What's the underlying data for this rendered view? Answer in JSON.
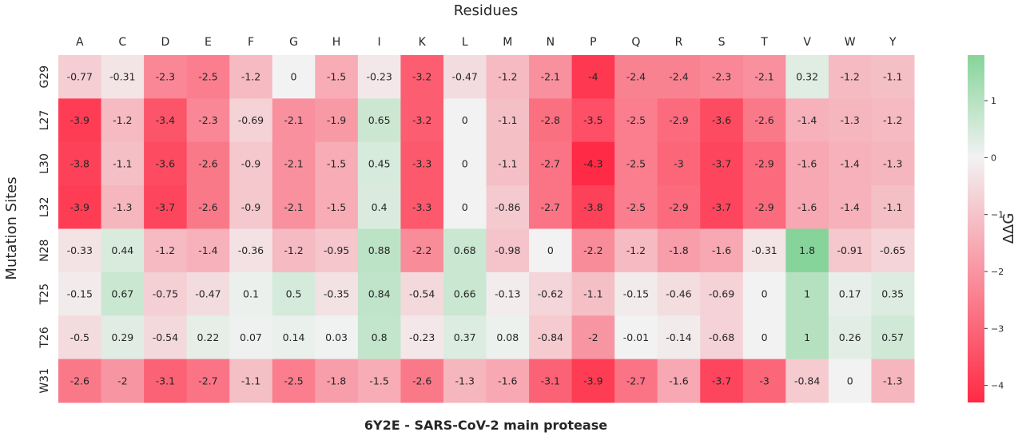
{
  "chart_data": {
    "type": "heatmap",
    "title": "Residues",
    "xlabel": "6Y2E - SARS-CoV-2 main protease",
    "ylabel": "Mutation Sites",
    "columns": [
      "A",
      "C",
      "D",
      "E",
      "F",
      "G",
      "H",
      "I",
      "K",
      "L",
      "M",
      "N",
      "P",
      "Q",
      "R",
      "S",
      "T",
      "V",
      "W",
      "Y"
    ],
    "rows": [
      "G29",
      "L27",
      "L30",
      "L32",
      "N28",
      "T25",
      "T26",
      "W31"
    ],
    "values": [
      [
        -0.77,
        -0.31,
        -2.3,
        -2.5,
        -1.2,
        0,
        -1.5,
        -0.23,
        -3.2,
        -0.47,
        -1.2,
        -2.1,
        -4,
        -2.4,
        -2.4,
        -2.3,
        -2.1,
        0.32,
        -1.2,
        -1.1
      ],
      [
        -3.9,
        -1.2,
        -3.4,
        -2.3,
        -0.69,
        -2.1,
        -1.9,
        0.65,
        -3.2,
        0,
        -1.1,
        -2.8,
        -3.5,
        -2.5,
        -2.9,
        -3.6,
        -2.6,
        -1.4,
        -1.3,
        -1.2
      ],
      [
        -3.8,
        -1.1,
        -3.6,
        -2.6,
        -0.9,
        -2.1,
        -1.5,
        0.45,
        -3.3,
        0,
        -1.1,
        -2.7,
        -4.3,
        -2.5,
        -3,
        -3.7,
        -2.9,
        -1.6,
        -1.4,
        -1.3
      ],
      [
        -3.9,
        -1.3,
        -3.7,
        -2.6,
        -0.9,
        -2.1,
        -1.5,
        0.4,
        -3.3,
        0,
        -0.86,
        -2.7,
        -3.8,
        -2.5,
        -2.9,
        -3.7,
        -2.9,
        -1.6,
        -1.4,
        -1.1
      ],
      [
        -0.33,
        0.44,
        -1.2,
        -1.4,
        -0.36,
        -1.2,
        -0.95,
        0.88,
        -2.2,
        0.68,
        -0.98,
        0,
        -2.2,
        -1.2,
        -1.8,
        -1.6,
        -0.31,
        1.8,
        -0.91,
        -0.65
      ],
      [
        -0.15,
        0.67,
        -0.75,
        -0.47,
        0.1,
        0.5,
        -0.35,
        0.84,
        -0.54,
        0.66,
        -0.13,
        -0.62,
        -1.1,
        -0.15,
        -0.46,
        -0.69,
        0,
        1,
        0.17,
        0.35
      ],
      [
        -0.5,
        0.29,
        -0.54,
        0.22,
        0.07,
        0.14,
        0.03,
        0.8,
        -0.23,
        0.37,
        0.08,
        -0.84,
        -2,
        -0.01,
        -0.14,
        -0.68,
        0,
        1,
        0.26,
        0.57
      ],
      [
        -2.6,
        -2,
        -3.1,
        -2.7,
        -1.1,
        -2.5,
        -1.8,
        -1.5,
        -2.6,
        -1.3,
        -1.6,
        -3.1,
        -3.9,
        -2.7,
        -1.6,
        -3.7,
        -3,
        -0.84,
        0,
        -1.3
      ]
    ],
    "colorbar": {
      "label": "ΔΔG",
      "range": [
        -4.3,
        1.8
      ],
      "ticks": [
        1,
        0,
        -1,
        -2,
        -3,
        -4
      ],
      "tick_labels": [
        "1",
        "0",
        "−1",
        "−2",
        "−3",
        "−4"
      ],
      "colors": {
        "negative": "#ff2a45",
        "zero": "#f2f2f2",
        "positive": "#86d49a"
      }
    },
    "grid": false
  }
}
